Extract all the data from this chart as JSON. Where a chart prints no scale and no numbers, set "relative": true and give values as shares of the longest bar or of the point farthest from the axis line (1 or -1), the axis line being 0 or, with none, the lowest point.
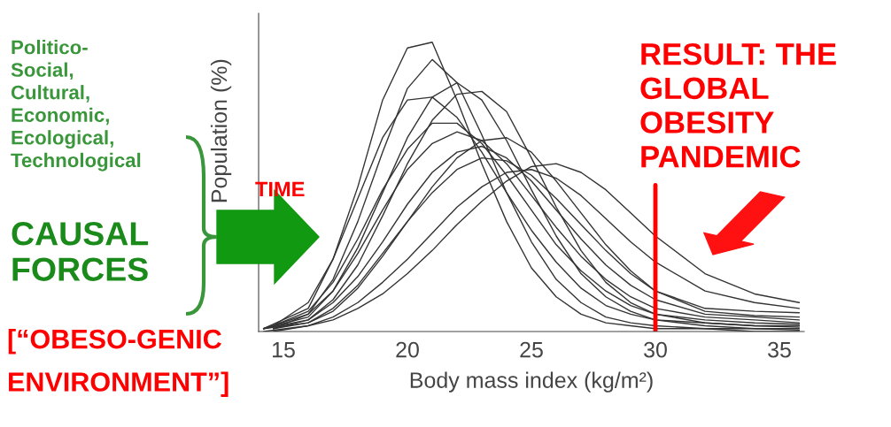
{
  "chart_data": {
    "type": "line",
    "relative": true,
    "xlabel": "Body mass index (kg/m²)",
    "ylabel": "Population (%)",
    "xlim": [
      14,
      36
    ],
    "xticks": [
      15,
      20,
      25,
      30,
      35
    ],
    "tick_labels": "x",
    "series": [
      {
        "color": "#333333",
        "x": [
          14.2,
          16,
          17,
          18,
          19,
          20,
          21,
          22,
          23,
          24,
          25,
          26,
          27,
          28,
          29,
          30,
          32,
          34,
          35.8
        ],
        "values": [
          0.01,
          0.08,
          0.25,
          0.5,
          0.8,
          0.98,
          1.0,
          0.8,
          0.58,
          0.38,
          0.22,
          0.12,
          0.06,
          0.03,
          0.02,
          0.01,
          0.01,
          0.0,
          0.0
        ]
      },
      {
        "color": "#333333",
        "x": [
          14.6,
          16,
          17,
          18,
          19,
          20,
          21,
          22,
          23,
          24,
          25,
          26,
          27,
          28,
          29,
          30,
          32,
          34,
          35.8
        ],
        "values": [
          0.01,
          0.06,
          0.18,
          0.38,
          0.62,
          0.84,
          0.94,
          0.86,
          0.68,
          0.48,
          0.31,
          0.18,
          0.1,
          0.05,
          0.03,
          0.02,
          0.01,
          0.01,
          0.005
        ]
      },
      {
        "color": "#333333",
        "x": [
          14.6,
          16,
          17,
          18,
          19,
          20,
          21,
          22,
          23,
          24,
          25,
          26,
          27,
          28,
          29,
          30,
          32,
          34,
          35.8
        ],
        "values": [
          0.02,
          0.1,
          0.25,
          0.46,
          0.67,
          0.8,
          0.81,
          0.74,
          0.62,
          0.48,
          0.35,
          0.24,
          0.15,
          0.09,
          0.06,
          0.04,
          0.03,
          0.02,
          0.015
        ]
      },
      {
        "color": "#333333",
        "x": [
          14.2,
          16,
          17,
          18,
          19,
          20,
          21,
          22,
          23,
          24,
          25,
          26,
          27,
          28,
          29,
          30,
          32,
          34,
          35.8
        ],
        "values": [
          0.01,
          0.05,
          0.14,
          0.29,
          0.48,
          0.67,
          0.81,
          0.86,
          0.8,
          0.66,
          0.49,
          0.33,
          0.2,
          0.12,
          0.07,
          0.04,
          0.02,
          0.01,
          0.01
        ]
      },
      {
        "color": "#333333",
        "x": [
          14.2,
          16,
          17,
          18,
          19,
          20,
          21,
          22,
          23,
          24,
          25,
          26,
          27,
          28,
          29,
          30,
          32,
          34,
          35.8
        ],
        "values": [
          0.01,
          0.04,
          0.11,
          0.23,
          0.4,
          0.58,
          0.73,
          0.82,
          0.83,
          0.76,
          0.6,
          0.43,
          0.28,
          0.17,
          0.1,
          0.06,
          0.03,
          0.02,
          0.02
        ]
      },
      {
        "color": "#333333",
        "x": [
          14.6,
          16,
          17,
          18,
          19,
          20,
          21,
          22,
          23,
          24,
          25,
          26,
          27,
          28,
          29,
          30,
          32,
          34,
          35.8
        ],
        "values": [
          0.02,
          0.07,
          0.17,
          0.32,
          0.49,
          0.63,
          0.72,
          0.72,
          0.65,
          0.54,
          0.42,
          0.3,
          0.21,
          0.14,
          0.09,
          0.06,
          0.04,
          0.03,
          0.025
        ]
      },
      {
        "color": "#333333",
        "x": [
          14.2,
          16,
          17,
          18,
          19,
          20,
          21,
          22,
          23,
          24,
          25,
          26,
          27,
          28,
          29,
          30,
          32,
          34,
          35.8
        ],
        "values": [
          0.01,
          0.06,
          0.14,
          0.27,
          0.42,
          0.56,
          0.65,
          0.69,
          0.66,
          0.58,
          0.47,
          0.36,
          0.26,
          0.18,
          0.12,
          0.08,
          0.05,
          0.04,
          0.03
        ]
      },
      {
        "color": "#333333",
        "x": [
          14.6,
          16,
          17,
          18,
          19,
          20,
          21,
          22,
          23,
          24,
          25,
          26,
          27,
          28,
          29,
          30,
          32,
          34,
          35.8
        ],
        "values": [
          0.01,
          0.03,
          0.07,
          0.15,
          0.26,
          0.38,
          0.5,
          0.6,
          0.66,
          0.67,
          0.62,
          0.52,
          0.41,
          0.3,
          0.21,
          0.14,
          0.08,
          0.07,
          0.065
        ]
      },
      {
        "color": "#333333",
        "x": [
          14.6,
          16,
          17,
          18,
          19,
          20,
          21,
          22,
          23,
          24,
          25,
          26,
          27,
          28,
          29,
          30,
          32,
          34,
          35.8
        ],
        "values": [
          0.01,
          0.04,
          0.1,
          0.19,
          0.31,
          0.44,
          0.55,
          0.62,
          0.64,
          0.6,
          0.52,
          0.42,
          0.32,
          0.23,
          0.16,
          0.11,
          0.06,
          0.05,
          0.04
        ]
      },
      {
        "color": "#333333",
        "x": [
          14.6,
          16,
          17,
          18,
          19,
          20,
          21,
          22,
          23,
          24,
          25,
          26,
          27,
          28,
          29,
          30,
          32,
          34,
          35.8
        ],
        "values": [
          0.0,
          0.02,
          0.04,
          0.08,
          0.13,
          0.2,
          0.28,
          0.37,
          0.45,
          0.52,
          0.57,
          0.58,
          0.55,
          0.49,
          0.41,
          0.33,
          0.2,
          0.13,
          0.1
        ]
      },
      {
        "color": "#333333",
        "x": [
          14.2,
          16,
          17,
          18,
          19,
          20,
          21,
          22,
          23,
          24,
          25,
          26,
          27,
          28,
          29,
          30,
          32,
          34,
          35.8
        ],
        "values": [
          0.0,
          0.02,
          0.05,
          0.1,
          0.17,
          0.25,
          0.34,
          0.43,
          0.5,
          0.55,
          0.56,
          0.53,
          0.47,
          0.39,
          0.31,
          0.24,
          0.14,
          0.1,
          0.08
        ]
      },
      {
        "color": "#333333",
        "x": [
          14.2,
          16,
          17,
          18,
          19,
          20,
          21,
          22,
          23,
          24,
          25,
          26,
          27,
          28,
          29,
          30,
          32,
          34,
          35.8
        ],
        "values": [
          0.01,
          0.03,
          0.08,
          0.16,
          0.27,
          0.38,
          0.48,
          0.56,
          0.6,
          0.59,
          0.54,
          0.46,
          0.37,
          0.28,
          0.2,
          0.14,
          0.07,
          0.055,
          0.05
        ]
      }
    ],
    "ref_lines": [
      {
        "axis": "x",
        "value": 30,
        "color": "#ff0000"
      }
    ],
    "annotations": [
      "Politico-\nSocial,\nCultural,\nEconomic,\nEcological,\nTechnological",
      "CAUSAL\nFORCES",
      "[“OBESO-GENIC\nENVIRONMENT”]",
      "TIME",
      "RESULT: THE\nGLOBAL\nOBESITY\nPANDEMIC"
    ]
  }
}
